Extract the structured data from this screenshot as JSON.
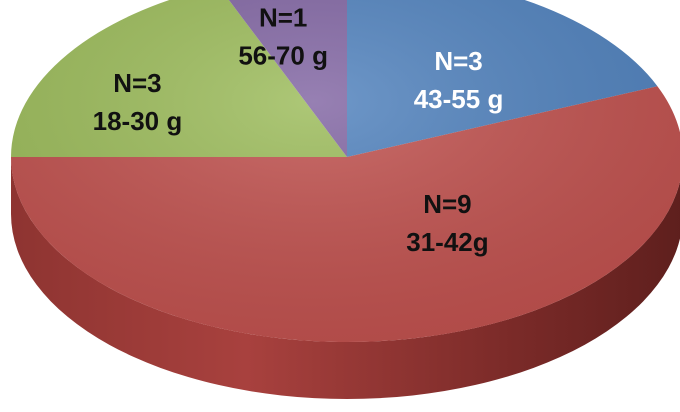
{
  "chart_data": {
    "type": "pie",
    "style": "3d",
    "slices": [
      {
        "count_label": "N=3",
        "range_label": "43-55 g",
        "value": 3,
        "color": "#4f81bd",
        "label_color": "#ffffff"
      },
      {
        "count_label": "N=9",
        "range_label": "31-42g",
        "value": 9,
        "color": "#c0504d",
        "label_color": "#111111"
      },
      {
        "count_label": "N=3",
        "range_label": "18-30 g",
        "value": 3,
        "color": "#9bbb59",
        "label_color": "#111111"
      },
      {
        "count_label": "N=1",
        "range_label": "56-70 g",
        "value": 1,
        "color": "#8064a2",
        "label_color": "#111111"
      }
    ],
    "title": "",
    "legend": "none"
  }
}
